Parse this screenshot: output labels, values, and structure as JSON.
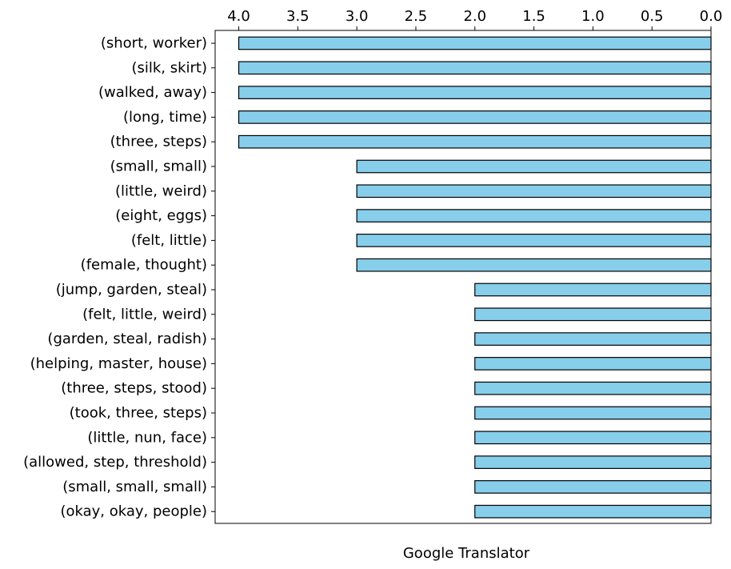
{
  "chart_data": {
    "type": "bar",
    "orientation": "horizontal",
    "x_axis_inverted": true,
    "x_ticks_position": "top",
    "xlabel": "Google Translator",
    "ylabel": "",
    "title": "",
    "xlim": [
      4.2,
      0.0
    ],
    "x_ticks": [
      "4.0",
      "3.5",
      "3.0",
      "2.5",
      "2.0",
      "1.5",
      "1.0",
      "0.5",
      "0.0"
    ],
    "x_tick_values": [
      4.0,
      3.5,
      3.0,
      2.5,
      2.0,
      1.5,
      1.0,
      0.5,
      0.0
    ],
    "grid": false,
    "bar_color": "#87CEEB",
    "bar_edge_color": "#000000",
    "categories": [
      "(short, worker)",
      "(silk, skirt)",
      "(walked, away)",
      "(long, time)",
      "(three, steps)",
      "(small, small)",
      "(little, weird)",
      "(eight, eggs)",
      "(felt, little)",
      "(female, thought)",
      "(jump, garden, steal)",
      "(felt, little, weird)",
      "(garden, steal, radish)",
      "(helping, master, house)",
      "(three, steps, stood)",
      "(took, three, steps)",
      "(little, nun, face)",
      "(allowed, step, threshold)",
      "(small, small, small)",
      "(okay, okay, people)"
    ],
    "values": [
      4,
      4,
      4,
      4,
      4,
      3,
      3,
      3,
      3,
      3,
      2,
      2,
      2,
      2,
      2,
      2,
      2,
      2,
      2,
      2
    ]
  }
}
